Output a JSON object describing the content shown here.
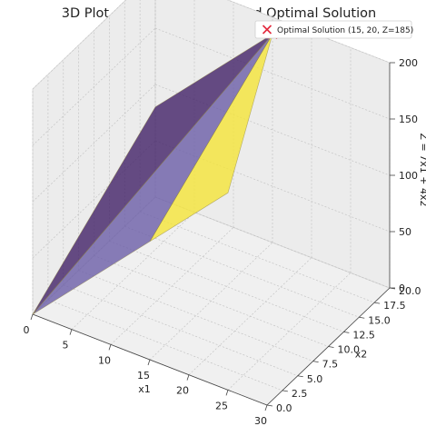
{
  "chart_data": {
    "type": "surface3d",
    "title": "3D Plot of Feasible Region and Optimal Solution",
    "xlabel": "x1",
    "ylabel": "x2",
    "zlabel": "Z = 7x1 + 4x2",
    "xlim": [
      0,
      30
    ],
    "ylim": [
      0,
      20
    ],
    "zlim": [
      0,
      200
    ],
    "x_ticks": [
      0,
      5,
      10,
      15,
      20,
      25,
      30
    ],
    "y_ticks": [
      "0.0",
      "2.5",
      "5.0",
      "7.5",
      "10.0",
      "12.5",
      "15.0",
      "17.5",
      "20.0"
    ],
    "z_ticks": [
      0,
      50,
      100,
      150,
      200
    ],
    "grid": true,
    "legend_placement": "top-right",
    "surfaces": [
      {
        "color": "#46266a",
        "vertices": [
          [
            0,
            0,
            0
          ],
          [
            15,
            20,
            185
          ],
          [
            5,
            20,
            115
          ],
          [
            0,
            20,
            80
          ]
        ]
      },
      {
        "color": "#f4e43c",
        "vertices": [
          [
            15,
            0,
            105
          ],
          [
            15,
            20,
            185
          ],
          [
            25,
            0,
            175
          ]
        ]
      },
      {
        "color": "#6e60a8",
        "vertices": [
          [
            0,
            0,
            0
          ],
          [
            15,
            0,
            105
          ],
          [
            15,
            20,
            185
          ]
        ]
      }
    ],
    "optimal_point": {
      "x1": 15,
      "x2": 20,
      "z": 185,
      "color": "#e3283c",
      "marker": "x",
      "label": "Optimal Solution (15, 20, Z=185)"
    }
  }
}
